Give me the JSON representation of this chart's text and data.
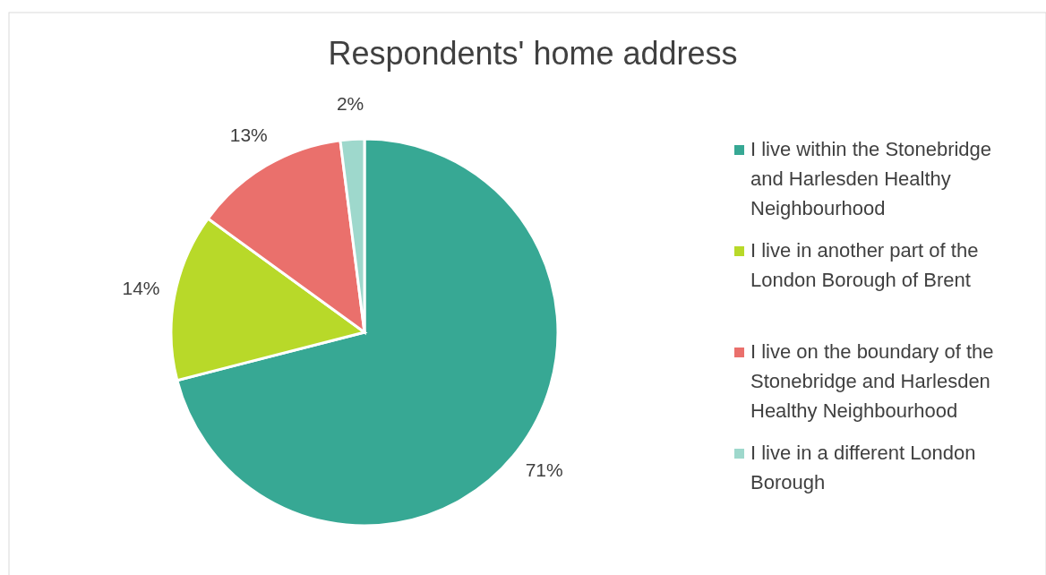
{
  "chart_data": {
    "type": "pie",
    "title": "Respondents' home address",
    "categories": [
      "I live within the Stonebridge and Harlesden Healthy Neighbourhood",
      "I live in another part of the London Borough of Brent",
      "I live on the boundary of the Stonebridge and Harlesden Healthy Neighbourhood",
      "I live in a different London Borough"
    ],
    "values": [
      71,
      14,
      13,
      2
    ],
    "colors": [
      "#37a894",
      "#b8d929",
      "#ea706c",
      "#9ed8cc"
    ],
    "value_labels": [
      "71%",
      "14%",
      "13%",
      "2%"
    ],
    "legend": "right"
  }
}
